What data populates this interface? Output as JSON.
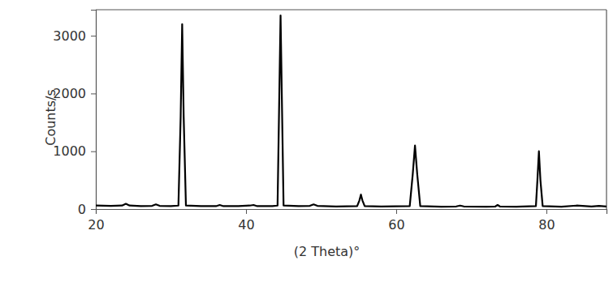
{
  "chart_data": {
    "type": "line",
    "x_label": "(2 Theta)°",
    "y_label": "Counts/s",
    "x": [
      20,
      22,
      23.5,
      24.0,
      24.5,
      26,
      27.5,
      28.0,
      28.5,
      30,
      31.0,
      31.3,
      31.5,
      31.7,
      32.0,
      34,
      36.0,
      36.5,
      37.0,
      39,
      40.5,
      41,
      41.5,
      43.5,
      44.2,
      44.4,
      44.6,
      44.8,
      45.0,
      47,
      48.5,
      49.0,
      49.5,
      52,
      54.8,
      55.1,
      55.3,
      55.5,
      55.8,
      58,
      61.8,
      62.2,
      62.5,
      62.8,
      63.2,
      66,
      68,
      68.5,
      69,
      72,
      73.2,
      73.5,
      73.8,
      76,
      78.6,
      78.8,
      79.0,
      79.2,
      79.5,
      82,
      84.0,
      86,
      87,
      88
    ],
    "values": [
      60,
      55,
      60,
      90,
      60,
      50,
      55,
      80,
      55,
      50,
      60,
      1600,
      3200,
      1600,
      60,
      50,
      50,
      70,
      50,
      50,
      60,
      70,
      50,
      50,
      60,
      1700,
      3350,
      1700,
      60,
      50,
      55,
      80,
      55,
      45,
      50,
      150,
      250,
      150,
      50,
      45,
      50,
      600,
      1100,
      600,
      50,
      40,
      45,
      60,
      45,
      40,
      45,
      70,
      45,
      40,
      50,
      500,
      1000,
      500,
      50,
      40,
      60,
      45,
      55,
      45
    ],
    "color": "#000000",
    "xlim": [
      20,
      88
    ],
    "xticks": [
      20,
      40,
      60,
      80
    ],
    "ylim": [
      0,
      3450
    ],
    "yticks": [
      0,
      1000,
      2000,
      3000
    ],
    "grid": false
  }
}
